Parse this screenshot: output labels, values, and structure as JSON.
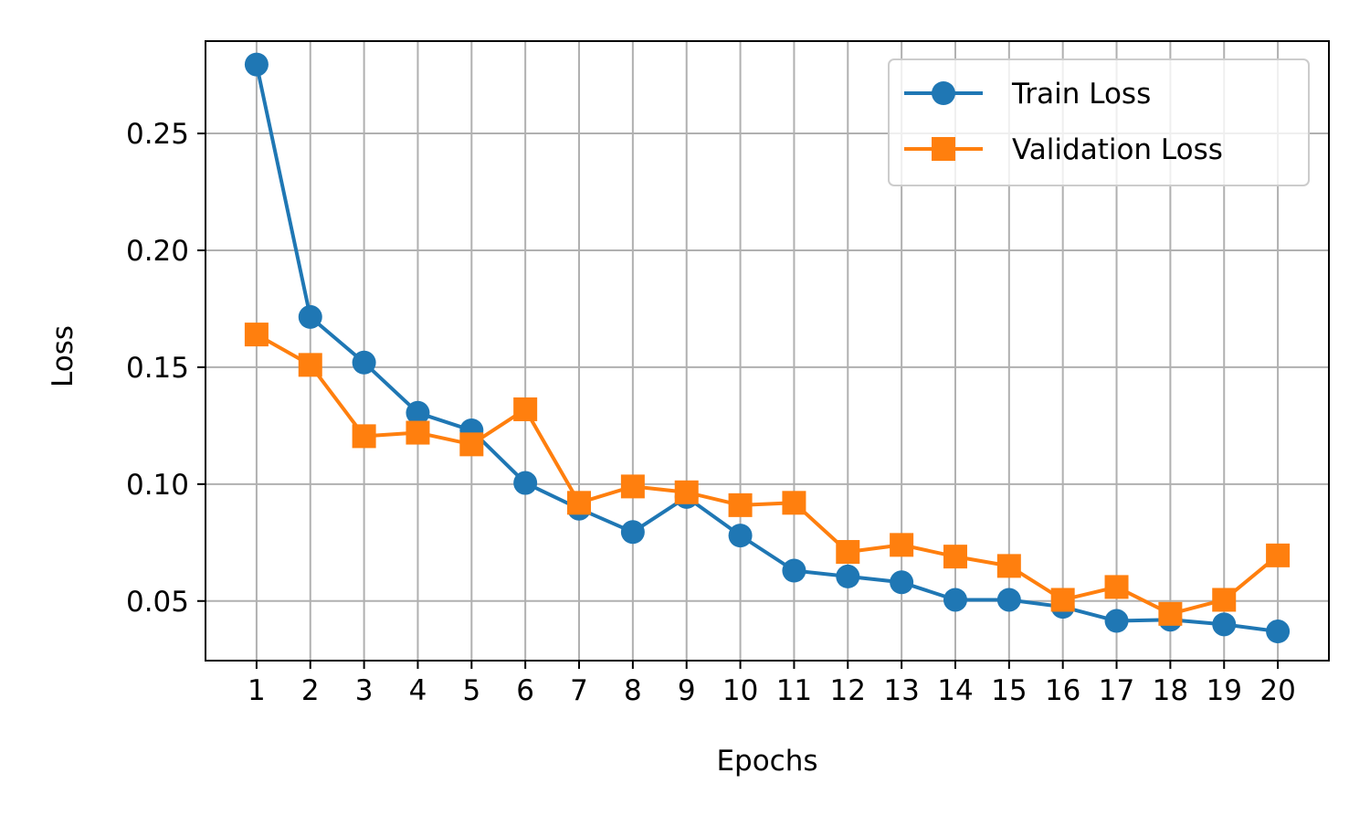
{
  "chart_data": {
    "type": "line",
    "title": "",
    "xlabel": "Epochs",
    "ylabel": "Loss",
    "x": [
      1,
      2,
      3,
      4,
      5,
      6,
      7,
      8,
      9,
      10,
      11,
      12,
      13,
      14,
      15,
      16,
      17,
      18,
      19,
      20
    ],
    "xlim": [
      0.05,
      20.95
    ],
    "ylim": [
      0.0245,
      0.2895
    ],
    "yticks": [
      0.05,
      0.1,
      0.15,
      0.2,
      0.25
    ],
    "ytick_labels": [
      "0.05",
      "0.10",
      "0.15",
      "0.20",
      "0.25"
    ],
    "xtick_labels": [
      "1",
      "2",
      "3",
      "4",
      "5",
      "6",
      "7",
      "8",
      "9",
      "10",
      "11",
      "12",
      "13",
      "14",
      "15",
      "16",
      "17",
      "18",
      "19",
      "20"
    ],
    "grid": true,
    "legend_position": "top-right",
    "series": [
      {
        "name": "Train Loss",
        "color": "#1f77b4",
        "marker": "circle",
        "values": [
          0.2795,
          0.1715,
          0.152,
          0.1305,
          0.123,
          0.1005,
          0.0895,
          0.0795,
          0.0945,
          0.078,
          0.063,
          0.0605,
          0.058,
          0.0505,
          0.0505,
          0.0475,
          0.0415,
          0.042,
          0.04,
          0.037
        ]
      },
      {
        "name": "Validation Loss",
        "color": "#ff7f0e",
        "marker": "square",
        "values": [
          0.164,
          0.151,
          0.1205,
          0.122,
          0.117,
          0.132,
          0.092,
          0.099,
          0.0965,
          0.091,
          0.092,
          0.071,
          0.074,
          0.069,
          0.065,
          0.0505,
          0.056,
          0.0445,
          0.0505,
          0.0695
        ]
      }
    ]
  }
}
